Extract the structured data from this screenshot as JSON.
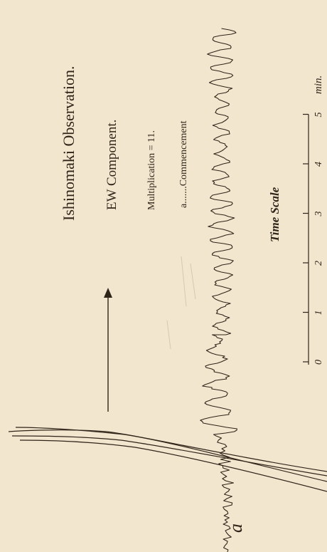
{
  "plate": {
    "title": "Ishinomaki Observation.",
    "component": "EW Component.",
    "multiplication": "Multiplication = 11.",
    "commencement_note": "a.......Commencement",
    "commencement_mark": "a"
  },
  "time_scale": {
    "title": "Time Scale",
    "unit": "min.",
    "ticks": [
      "0",
      "1",
      "2",
      "3",
      "4",
      "5"
    ],
    "minutes": [
      0,
      1,
      2,
      3,
      4,
      5
    ]
  },
  "colors": {
    "paper": "#f3e6cf",
    "ink": "#2f2418"
  }
}
